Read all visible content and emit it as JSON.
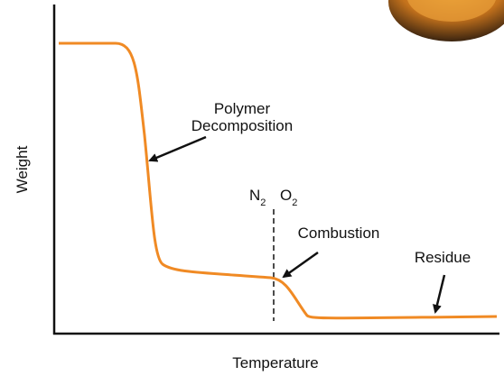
{
  "axes": {
    "y_label": "Weight",
    "x_label": "Temperature"
  },
  "annotations": {
    "decomposition": [
      "Polymer",
      "Decomposition"
    ],
    "n2": {
      "label": "N",
      "subscript": "2"
    },
    "o2": {
      "label": "O",
      "subscript": "2"
    },
    "combustion": "Combustion",
    "residue": "Residue"
  }
}
